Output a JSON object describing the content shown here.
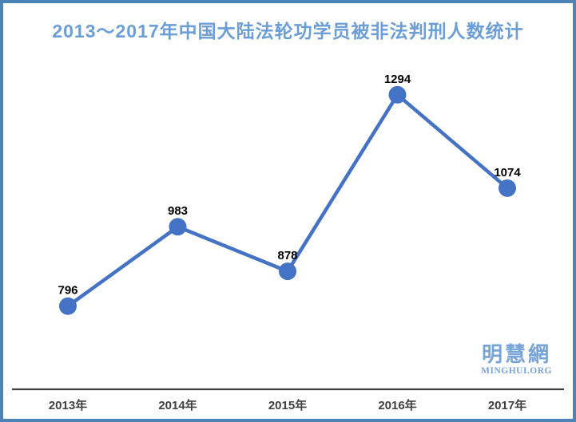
{
  "title": "2013～2017年中国大陆法轮功学员被非法判刑人数统计",
  "chart_data": {
    "type": "line",
    "categories": [
      "2013年",
      "2014年",
      "2015年",
      "2016年",
      "2017年"
    ],
    "values": [
      796,
      983,
      878,
      1294,
      1074
    ],
    "data_labels": [
      "796",
      "983",
      "878",
      "1294",
      "1074"
    ],
    "title": "2013～2017年中国大陆法轮功学员被非法判刑人数统计",
    "xlabel": "",
    "ylabel": "",
    "ylim": [
      600,
      1400
    ],
    "grid": false,
    "legend": false,
    "line_color": "#4472C4",
    "marker": "circle",
    "axis_color": "#3F3F3F",
    "label_color": "#000000",
    "tick_color": "#404040"
  },
  "watermark": {
    "cjk": "明慧網",
    "latin": "MINGHUI.ORG"
  },
  "colors": {
    "page_border": "#4C83B6",
    "title_text": "#6B9DD6",
    "watermark_text": "#76A3D8"
  }
}
